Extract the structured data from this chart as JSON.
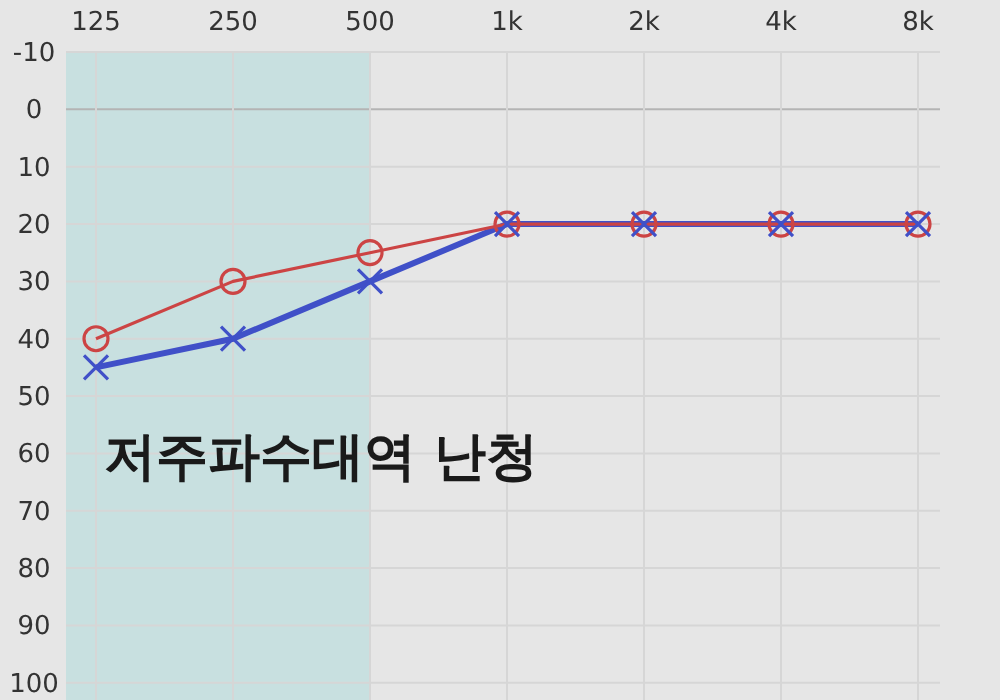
{
  "chart_data": {
    "type": "line",
    "categories": [
      "125",
      "250",
      "500",
      "1k",
      "2k",
      "4k",
      "8k"
    ],
    "series": [
      {
        "color": "#cc4444",
        "marker": "circle",
        "values": [
          40,
          30,
          25,
          20,
          20,
          20,
          20
        ]
      },
      {
        "color": "#4050c8",
        "marker": "cross",
        "values": [
          45,
          40,
          30,
          20,
          20,
          20,
          20
        ]
      }
    ],
    "ylim": [
      103,
      -10
    ],
    "yticks": [
      -10,
      0,
      10,
      20,
      30,
      40,
      50,
      60,
      70,
      80,
      90,
      100
    ],
    "bands": [
      {
        "axis": "x",
        "from": "125",
        "to": "500",
        "color": "#c8e0e0"
      }
    ],
    "annotations": [
      "저주파수대역 난청"
    ],
    "grid": true
  }
}
